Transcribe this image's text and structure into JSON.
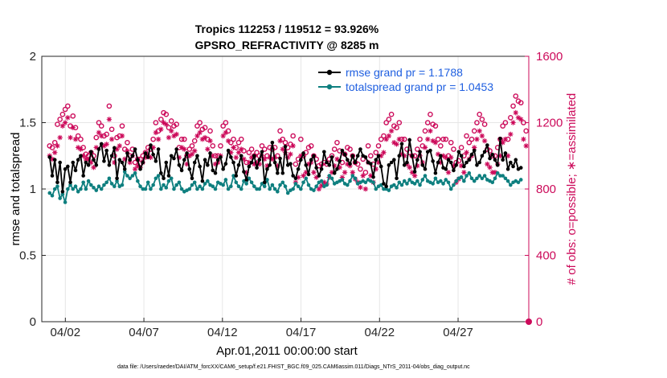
{
  "chart_data": {
    "type": "line",
    "title_line1": "Tropics 112253 / 119512 = 93.926%",
    "title_line2": "GPSRO_REFRACTIVITY @ 8285 m",
    "xlabel": "Apr.01,2011 00:00:00 start",
    "ylabel_left": "rmse and totalspread",
    "ylabel_right": "# of obs: o=possible; ∗=assimilated",
    "ylim_left": [
      0,
      2
    ],
    "ylim_right": [
      0,
      1600
    ],
    "left_ticks": [
      "0",
      "0.5",
      "1",
      "1.5",
      "2"
    ],
    "right_ticks": [
      "0",
      "400",
      "800",
      "1200",
      "1600"
    ],
    "x_range_days": [
      0.5,
      31.5
    ],
    "x_ticks": [
      {
        "day": 2,
        "label": "04/02"
      },
      {
        "day": 7,
        "label": "04/07"
      },
      {
        "day": 12,
        "label": "04/12"
      },
      {
        "day": 17,
        "label": "04/17"
      },
      {
        "day": 22,
        "label": "04/22"
      },
      {
        "day": 27,
        "label": "04/27"
      }
    ],
    "footnote": "data file: /Users/raeder/DAI/ATM_forcXX/CAM6_setup/f.e21.FHIST_BGC.f09_025.CAM6assim.011/Diags_NTrS_2011-04/obs_diag_output.nc",
    "colors": {
      "rmse": "#000000",
      "spread": "#0e7f7f",
      "obs": "#cc0a5a",
      "legend_text": "#1f5fe0",
      "grid": "#e6e6e6"
    },
    "series": [
      {
        "name": "rmse",
        "legend": "rmse grand pr = 1.1788",
        "values": [
          1.24,
          1.1,
          1.22,
          1.05,
          1.2,
          0.98,
          1.15,
          1.17,
          1.05,
          1.2,
          1.14,
          1.22,
          1.25,
          1.1,
          1.2,
          1.18,
          1.28,
          1.22,
          1.18,
          1.3,
          1.34,
          1.21,
          1.29,
          1.18,
          1.25,
          1.31,
          1.08,
          1.22,
          1.2,
          1.15,
          1.27,
          1.22,
          1.25,
          1.3,
          1.22,
          1.15,
          1.2,
          1.27,
          1.24,
          1.33,
          1.26,
          1.21,
          1.3,
          1.12,
          1.08,
          1.2,
          1.1,
          1.25,
          1.23,
          1.3,
          1.18,
          1.14,
          1.22,
          1.27,
          1.15,
          1.08,
          1.2,
          1.25,
          1.17,
          1.06,
          1.22,
          1.18,
          1.27,
          1.14,
          1.12,
          1.22,
          1.24,
          1.15,
          1.19,
          1.29,
          1.24,
          1.2,
          1.1,
          1.18,
          1.25,
          1.13,
          1.07,
          1.17,
          1.2,
          1.25,
          1.16,
          1.22,
          1.28,
          1.05,
          1.15,
          1.18,
          1.35,
          1.2,
          1.12,
          1.23,
          1.12,
          1.32,
          1.18,
          1.19,
          1.1,
          1.08,
          1.15,
          1.22,
          1.27,
          1.18,
          1.11,
          1.22,
          1.25,
          1.16,
          1.1,
          1.15,
          1.28,
          1.2,
          1.18,
          1.24,
          1.12,
          1.15,
          1.21,
          1.29,
          1.26,
          1.22,
          1.19,
          1.25,
          1.2,
          1.25,
          1.3,
          1.25,
          1.24,
          1.2,
          1.19,
          1.09,
          1.22,
          1.25,
          1.17,
          1.04,
          1.02,
          1.18,
          1.2,
          1.22,
          1.08,
          1.25,
          1.34,
          1.18,
          1.2,
          1.37,
          1.25,
          1.13,
          1.22,
          1.28,
          1.18,
          1.15,
          1.28,
          1.29,
          1.21,
          1.12,
          1.2,
          1.25,
          1.16,
          1.15,
          1.22,
          1.2,
          1.14,
          1.18,
          1.28,
          1.25,
          1.17,
          1.2,
          1.22,
          1.26,
          1.29,
          1.18,
          1.2,
          1.25,
          1.28,
          1.33,
          1.23,
          1.26,
          1.22,
          1.18,
          1.38,
          1.22,
          1.27,
          1.15,
          1.2,
          1.17,
          1.22,
          1.15,
          1.16
        ]
      },
      {
        "name": "totalspread",
        "legend": "totalspread grand pr = 1.0453",
        "values": [
          0.97,
          0.95,
          1.0,
          1.02,
          0.93,
          0.96,
          0.9,
          1.0,
          1.03,
          1.0,
          1.02,
          0.98,
          1.0,
          1.05,
          1.0,
          1.06,
          1.03,
          1.01,
          0.99,
          1.02,
          1.0,
          1.03,
          1.05,
          1.08,
          1.04,
          1.02,
          1.06,
          1.02,
          1.03,
          1.13,
          1.1,
          1.08,
          1.1,
          1.12,
          1.06,
          1.02,
          1.0,
          1.0,
          1.05,
          1.0,
          1.03,
          1.08,
          1.1,
          1.0,
          1.03,
          1.01,
          1.06,
          1.08,
          1.0,
          1.03,
          1.05,
          1.0,
          0.98,
          0.99,
          1.0,
          1.03,
          1.05,
          1.0,
          1.02,
          1.0,
          1.04,
          1.06,
          1.03,
          1.02,
          1.0,
          1.05,
          1.04,
          1.03,
          1.07,
          1.0,
          1.02,
          1.1,
          1.05,
          1.02,
          1.0,
          1.06,
          1.04,
          1.08,
          1.05,
          1.02,
          1.0,
          1.0,
          1.04,
          1.02,
          1.07,
          1.0,
          1.03,
          1.0,
          0.98,
          1.03,
          1.05,
          1.02,
          0.97,
          0.99,
          1.0,
          1.04,
          1.02,
          1.0,
          1.05,
          1.08,
          1.03,
          1.0,
          0.99,
          1.02,
          1.05,
          1.06,
          1.02,
          1.03,
          1.1,
          1.08,
          1.04,
          1.05,
          1.06,
          1.07,
          1.04,
          1.03,
          1.06,
          1.1,
          1.08,
          1.04,
          1.05,
          1.06,
          1.05,
          1.07,
          1.06,
          1.05,
          1.0,
          1.02,
          1.03,
          1.0,
          1.0,
          0.99,
          1.02,
          1.03,
          1.01,
          1.05,
          1.03,
          1.06,
          1.04,
          1.07,
          1.05,
          1.04,
          1.06,
          1.03,
          1.07,
          1.1,
          1.06,
          1.05,
          1.04,
          1.08,
          1.05,
          1.06,
          1.04,
          1.07,
          1.05,
          1.0,
          1.03,
          1.06,
          1.08,
          1.09,
          1.06,
          1.1,
          1.12,
          1.08,
          1.06,
          1.08,
          1.1,
          1.08,
          1.1,
          1.07,
          1.06,
          1.05,
          1.08,
          1.12,
          1.1,
          1.1,
          1.08,
          1.06,
          1.03,
          1.05,
          1.06,
          1.05,
          1.07
        ]
      },
      {
        "name": "obs_possible",
        "marker": "o",
        "values": [
          1060,
          1050,
          1080,
          1190,
          1220,
          1250,
          1280,
          1300,
          1180,
          1240,
          1170,
          1120,
          1100,
          1050,
          1010,
          1000,
          1020,
          1000,
          1110,
          1200,
          1180,
          1120,
          1130,
          1300,
          1160,
          1000,
          1110,
          1120,
          1180,
          1040,
          1080,
          1000,
          1040,
          960,
          980,
          980,
          1000,
          1020,
          1050,
          1040,
          1100,
          1200,
          1150,
          1220,
          1260,
          1250,
          1170,
          1210,
          1180,
          1190,
          1050,
          1100,
          1100,
          1000,
          1040,
          1060,
          1090,
          1180,
          1200,
          1160,
          1170,
          1100,
          1150,
          1060,
          1000,
          1000,
          1060,
          1180,
          1200,
          1150,
          1080,
          1100,
          1050,
          1080,
          1100,
          1030,
          960,
          1020,
          1040,
          1000,
          1020,
          1000,
          1060,
          1040,
          1000,
          1050,
          1040,
          1050,
          1000,
          1150,
          1100,
          1080,
          1050,
          1070,
          1120,
          950,
          980,
          1100,
          1000,
          1020,
          1050,
          1060,
          1000,
          980,
          940,
          950,
          960,
          950,
          980,
          1000,
          1040,
          1080,
          1030,
          960,
          1010,
          1050,
          1040,
          1000,
          960,
          950,
          920,
          980,
          900,
          1060,
          1000,
          950,
          1020,
          1060,
          1100,
          1120,
          1200,
          1220,
          1250,
          1180,
          1170,
          1200,
          1100,
          1100,
          1040,
          1020,
          1000,
          1000,
          1040,
          1100,
          1060,
          1150,
          1200,
          1250,
          1190,
          1180,
          1100,
          1060,
          1100,
          1100,
          1000,
          1080,
          1040,
          960,
          970,
          1050,
          1000,
          1120,
          1080,
          1100,
          1150,
          1200,
          1250,
          1220,
          1190,
          1040,
          1030,
          1000,
          1000,
          1050,
          1100,
          1180,
          1200,
          1100,
          1230,
          1300,
          1360,
          1330,
          1320,
          1200,
          1150
        ]
      },
      {
        "name": "obs_assimilated",
        "marker": "*",
        "values": [
          1000,
          980,
          1020,
          1060,
          1110,
          1180,
          1200,
          1230,
          1110,
          1170,
          1100,
          1050,
          1040,
          1000,
          980,
          980,
          960,
          930,
          1050,
          1140,
          1120,
          1060,
          1070,
          1220,
          1100,
          960,
          1040,
          1060,
          1120,
          980,
          1030,
          960,
          1000,
          920,
          940,
          930,
          960,
          990,
          1000,
          990,
          1050,
          1140,
          1100,
          1160,
          1200,
          1190,
          1110,
          1150,
          1120,
          1130,
          990,
          1050,
          1040,
          950,
          1000,
          1010,
          1030,
          1120,
          1140,
          1100,
          1110,
          1040,
          1090,
          1000,
          950,
          960,
          1000,
          1120,
          1140,
          1090,
          1020,
          1050,
          990,
          1020,
          1040,
          980,
          900,
          960,
          990,
          950,
          960,
          950,
          1000,
          980,
          940,
          990,
          980,
          990,
          940,
          1090,
          1040,
          1020,
          990,
          1010,
          1060,
          840,
          870,
          1000,
          880,
          900,
          950,
          960,
          900,
          870,
          800,
          820,
          840,
          830,
          870,
          900,
          940,
          980,
          930,
          870,
          900,
          950,
          940,
          900,
          860,
          840,
          810,
          880,
          800,
          960,
          880,
          840,
          920,
          960,
          1000,
          1020,
          1100,
          1120,
          1150,
          1080,
          1070,
          1100,
          1010,
          1000,
          950,
          930,
          900,
          880,
          940,
          1000,
          960,
          1050,
          1100,
          1150,
          1090,
          1080,
          1010,
          960,
          1000,
          990,
          900,
          990,
          940,
          840,
          860,
          940,
          900,
          1020,
          980,
          1000,
          1050,
          1100,
          1150,
          1120,
          1090,
          950,
          930,
          900,
          900,
          950,
          1000,
          1080,
          1100,
          1000,
          1130,
          1200,
          1260,
          1230,
          1220,
          1100,
          1060
        ]
      }
    ]
  }
}
